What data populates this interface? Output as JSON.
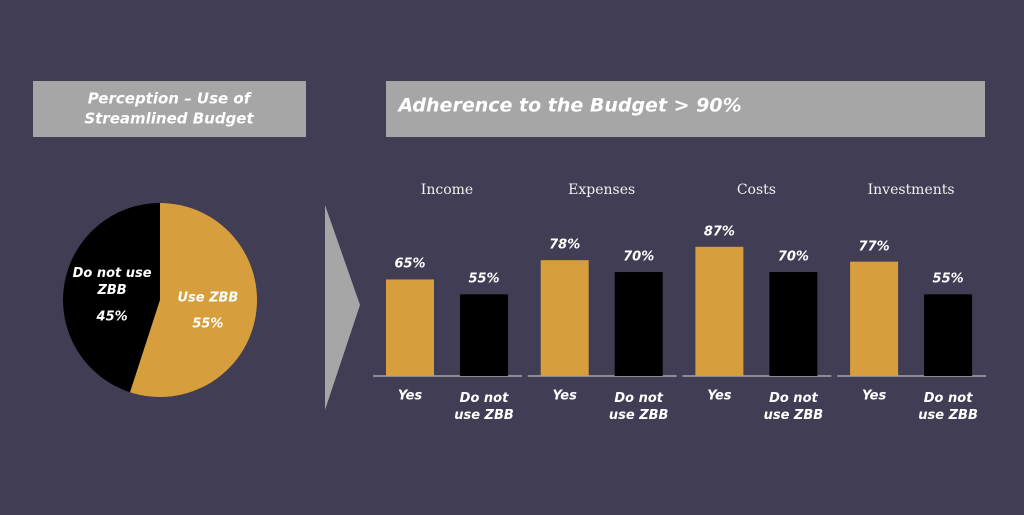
{
  "section_title": "Adherence to the Budget > 90%",
  "chart_data": [
    {
      "type": "pie",
      "title": "Perception – Use of Streamlined Budget",
      "categories": [
        "Do not use ZBB",
        "Use ZBB"
      ],
      "values": [
        45,
        55
      ],
      "value_labels": [
        "45%",
        "55%"
      ],
      "colors": [
        "#000000",
        "#d69e3c"
      ]
    },
    {
      "type": "bar",
      "title": "Income",
      "categories": [
        "Yes",
        "Do not use ZBB"
      ],
      "values": [
        65,
        55
      ],
      "value_labels": [
        "65%",
        "55%"
      ],
      "colors": [
        "#d69e3c",
        "#000000"
      ]
    },
    {
      "type": "bar",
      "title": "Expenses",
      "categories": [
        "Yes",
        "Do not use ZBB"
      ],
      "values": [
        78,
        70
      ],
      "value_labels": [
        "78%",
        "70%"
      ],
      "colors": [
        "#d69e3c",
        "#000000"
      ]
    },
    {
      "type": "bar",
      "title": "Costs",
      "categories": [
        "Yes",
        "Do not use ZBB"
      ],
      "values": [
        87,
        70
      ],
      "value_labels": [
        "87%",
        "70%"
      ],
      "colors": [
        "#d69e3c",
        "#000000"
      ]
    },
    {
      "type": "bar",
      "title": "Investments",
      "categories": [
        "Yes",
        "Do not use ZBB"
      ],
      "values": [
        77,
        55
      ],
      "value_labels": [
        "77%",
        "55%"
      ],
      "colors": [
        "#d69e3c",
        "#000000"
      ]
    }
  ]
}
